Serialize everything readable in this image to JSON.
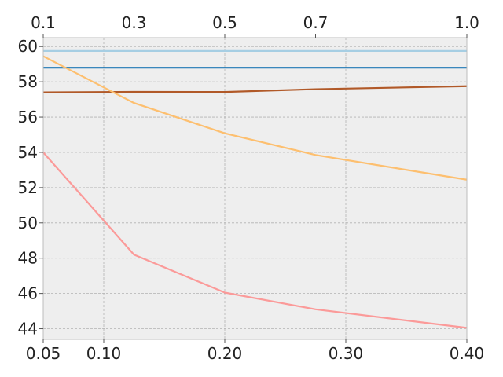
{
  "chart_data": {
    "type": "line",
    "title": "",
    "xlabel": "",
    "ylabel": "",
    "grid": true,
    "legend": "none",
    "background": "#eeeeee",
    "x": [
      0.05,
      0.125,
      0.2,
      0.275,
      0.4
    ],
    "xlim": [
      0.05,
      0.4
    ],
    "ylim": [
      43.4,
      60.5
    ],
    "bottom_ticks": [
      {
        "value": 0.05,
        "label": "0.05"
      },
      {
        "value": 0.1,
        "label": "0.10"
      },
      {
        "value": 0.2,
        "label": "0.20"
      },
      {
        "value": 0.3,
        "label": "0.30"
      },
      {
        "value": 0.4,
        "label": "0.40"
      }
    ],
    "bottom_minor_ticks": [
      0.125
    ],
    "top_ticks": [
      {
        "value": 0.05,
        "label": "0.1"
      },
      {
        "value": 0.125,
        "label": "0.3"
      },
      {
        "value": 0.2,
        "label": "0.5"
      },
      {
        "value": 0.275,
        "label": "0.7"
      },
      {
        "value": 0.4,
        "label": "1.0"
      }
    ],
    "y_ticks": [
      {
        "value": 44,
        "label": "44"
      },
      {
        "value": 46,
        "label": "46"
      },
      {
        "value": 48,
        "label": "48"
      },
      {
        "value": 50,
        "label": "50"
      },
      {
        "value": 52,
        "label": "52"
      },
      {
        "value": 54,
        "label": "54"
      },
      {
        "value": 56,
        "label": "56"
      },
      {
        "value": 58,
        "label": "58"
      },
      {
        "value": 60,
        "label": "60"
      }
    ],
    "series": [
      {
        "color": "#a6cee3",
        "values": [
          59.75,
          59.75,
          59.75,
          59.75,
          59.75
        ]
      },
      {
        "color": "#1f78b4",
        "values": [
          58.8,
          58.8,
          58.8,
          58.8,
          58.8
        ]
      },
      {
        "color": "#b15928",
        "values": [
          57.4,
          57.43,
          57.42,
          57.58,
          57.75
        ]
      },
      {
        "color": "#fdbf6f",
        "values": [
          59.45,
          56.8,
          55.08,
          53.85,
          52.45
        ]
      },
      {
        "color": "#fb9a99",
        "values": [
          54.0,
          48.2,
          46.05,
          45.1,
          44.05
        ]
      }
    ]
  }
}
